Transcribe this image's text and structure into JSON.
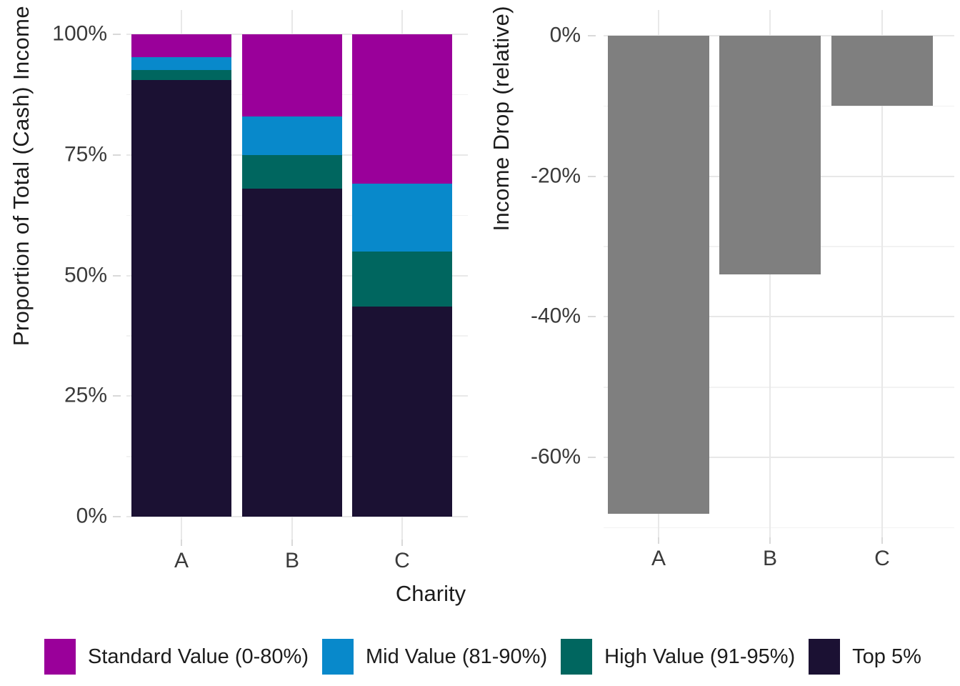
{
  "chart_data": [
    {
      "type": "bar",
      "variant": "stacked-percent",
      "panel": "left",
      "title": "",
      "xlabel": "Charity",
      "ylabel": "Proportion of Total (Cash) Income",
      "categories": [
        "A",
        "B",
        "C"
      ],
      "stack_order": "bottom-to-top",
      "series": [
        {
          "name": "Top 5%",
          "color": "#1B1133",
          "values": [
            90.5,
            68.0,
            43.5
          ]
        },
        {
          "name": "High Value (91-95%)",
          "color": "#00665F",
          "values": [
            2.1,
            7.0,
            11.5
          ]
        },
        {
          "name": "Mid Value (81-90%)",
          "color": "#0889CB",
          "values": [
            2.6,
            8.0,
            14.0
          ]
        },
        {
          "name": "Standard Value (0-80%)",
          "color": "#9A009A",
          "values": [
            4.8,
            17.0,
            31.0
          ]
        }
      ],
      "ylim": [
        0,
        100
      ],
      "ytick_values": [
        0,
        25,
        50,
        75,
        100
      ],
      "ytick_labels": [
        "0%",
        "25%",
        "50%",
        "75%",
        "100%"
      ],
      "yminor_values": [
        12.5,
        37.5,
        62.5,
        87.5
      ],
      "grid": "major+minor horizontal, major vertical at categories",
      "legend_position": "bottom"
    },
    {
      "type": "bar",
      "variant": "single-series",
      "panel": "right",
      "title": "",
      "xlabel": "",
      "ylabel": "Income Drop (relative)",
      "categories": [
        "A",
        "B",
        "C"
      ],
      "values": [
        -68,
        -34,
        -10
      ],
      "bar_color": "#7F7F7F",
      "ylim": [
        -71.5,
        0
      ],
      "ytick_values": [
        0,
        -20,
        -40,
        -60
      ],
      "ytick_labels": [
        "0%",
        "-20%",
        "-40%",
        "-60%"
      ],
      "yminor_values": [
        -10,
        -30,
        -50,
        -70
      ],
      "grid": "major+minor horizontal, major vertical at categories",
      "legend_position": "none"
    }
  ],
  "legend": {
    "items": [
      {
        "label": "Standard Value (0-80%)",
        "color": "#9A009A"
      },
      {
        "label": "Mid Value (81-90%)",
        "color": "#0889CB"
      },
      {
        "label": "High Value (91-95%)",
        "color": "#00665F"
      },
      {
        "label": "Top 5%",
        "color": "#1B1133"
      }
    ]
  },
  "style_colors": {
    "background": "#FFFFFF",
    "grid_major": "#E8E8E8",
    "grid_minor": "#F2F2F2",
    "tick_mark": "#D9D9D9",
    "tick_text": "#3A3A3A",
    "title_text": "#1C1C1C"
  }
}
